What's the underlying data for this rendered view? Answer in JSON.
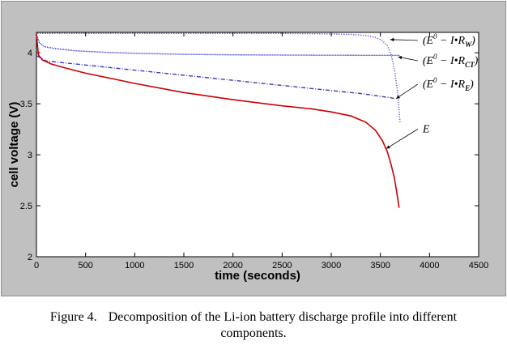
{
  "chart_data": {
    "type": "line",
    "xlabel": "time (seconds)",
    "ylabel": "cell voltage (V)",
    "xlim": [
      0,
      4500
    ],
    "ylim": [
      2,
      4.2
    ],
    "xticks": [
      0,
      500,
      1000,
      1500,
      2000,
      2500,
      3000,
      3500,
      4000,
      4500
    ],
    "yticks": [
      2,
      2.5,
      3,
      3.5,
      4
    ],
    "ytick_labels": [
      "2",
      "2.5",
      "3",
      "3.5",
      "4"
    ],
    "series": [
      {
        "name": "E^0 - I•R_W",
        "color": "#4a4ad8",
        "style": "dotted",
        "points": [
          [
            10,
            4.19
          ],
          [
            200,
            4.19
          ],
          [
            600,
            4.19
          ],
          [
            1000,
            4.19
          ],
          [
            1500,
            4.19
          ],
          [
            2000,
            4.19
          ],
          [
            2500,
            4.19
          ],
          [
            3000,
            4.185
          ],
          [
            3200,
            4.18
          ],
          [
            3350,
            4.17
          ],
          [
            3450,
            4.15
          ],
          [
            3520,
            4.12
          ],
          [
            3570,
            4.07
          ],
          [
            3610,
            3.98
          ],
          [
            3640,
            3.85
          ],
          [
            3660,
            3.72
          ],
          [
            3680,
            3.58
          ],
          [
            3690,
            3.45
          ],
          [
            3700,
            3.32
          ]
        ]
      },
      {
        "name": "E^0 - I•R_CT",
        "color": "#1a1acc",
        "style": "dotted-dense",
        "points": [
          [
            0,
            4.18
          ],
          [
            30,
            4.1
          ],
          [
            80,
            4.06
          ],
          [
            200,
            4.04
          ],
          [
            400,
            4.02
          ],
          [
            700,
            4.005
          ],
          [
            1000,
            3.995
          ],
          [
            1500,
            3.985
          ],
          [
            2000,
            3.98
          ],
          [
            2500,
            3.978
          ],
          [
            3000,
            3.976
          ],
          [
            3400,
            3.975
          ],
          [
            3700,
            3.975
          ]
        ]
      },
      {
        "name": "E^0 - I•R_E",
        "color": "#3a3ab8",
        "style": "dashdot",
        "points": [
          [
            5,
            3.97
          ],
          [
            100,
            3.92
          ],
          [
            500,
            3.88
          ],
          [
            1000,
            3.83
          ],
          [
            1500,
            3.78
          ],
          [
            2000,
            3.73
          ],
          [
            2500,
            3.68
          ],
          [
            3000,
            3.63
          ],
          [
            3300,
            3.6
          ],
          [
            3600,
            3.56
          ],
          [
            3650,
            3.55
          ]
        ]
      },
      {
        "name": "E",
        "color": "#cc0000",
        "style": "solid",
        "points": [
          [
            0,
            4.18
          ],
          [
            20,
            3.98
          ],
          [
            60,
            3.93
          ],
          [
            150,
            3.89
          ],
          [
            300,
            3.85
          ],
          [
            500,
            3.8
          ],
          [
            800,
            3.74
          ],
          [
            1000,
            3.7
          ],
          [
            1500,
            3.61
          ],
          [
            2000,
            3.54
          ],
          [
            2500,
            3.48
          ],
          [
            2800,
            3.45
          ],
          [
            3000,
            3.42
          ],
          [
            3200,
            3.38
          ],
          [
            3350,
            3.32
          ],
          [
            3450,
            3.24
          ],
          [
            3520,
            3.14
          ],
          [
            3570,
            3.03
          ],
          [
            3610,
            2.9
          ],
          [
            3640,
            2.78
          ],
          [
            3660,
            2.67
          ],
          [
            3680,
            2.55
          ],
          [
            3690,
            2.48
          ]
        ]
      }
    ],
    "annotations": [
      {
        "id": "ann-rw",
        "text": "(E⁰ − I•R_W)",
        "main": "(E",
        "sup": "0",
        "mid": " − I•R",
        "sub": "W",
        "tail": ")",
        "target": [
          3600,
          4.13
        ],
        "label_at": [
          3930,
          4.09
        ]
      },
      {
        "id": "ann-rct",
        "text": "(E⁰ − I•R_CT)",
        "main": "(E",
        "sup": "0",
        "mid": " − I•R",
        "sub": "CT",
        "tail": ")",
        "target": [
          3680,
          3.96
        ],
        "label_at": [
          3930,
          3.89
        ]
      },
      {
        "id": "ann-re",
        "text": "(E⁰ − I•R_E)",
        "main": "(E",
        "sup": "0",
        "mid": " − I•R",
        "sub": "E",
        "tail": ")",
        "target": [
          3660,
          3.55
        ],
        "label_at": [
          3930,
          3.66
        ]
      },
      {
        "id": "ann-e",
        "text": "E",
        "main": "E",
        "sup": "",
        "mid": "",
        "sub": "",
        "tail": "",
        "target": [
          3560,
          3.06
        ],
        "label_at": [
          3930,
          3.22
        ]
      }
    ]
  },
  "caption": {
    "label": "Figure 4.",
    "line1": "Decomposition of the Li-ion battery discharge profile into different",
    "line2": "components."
  }
}
